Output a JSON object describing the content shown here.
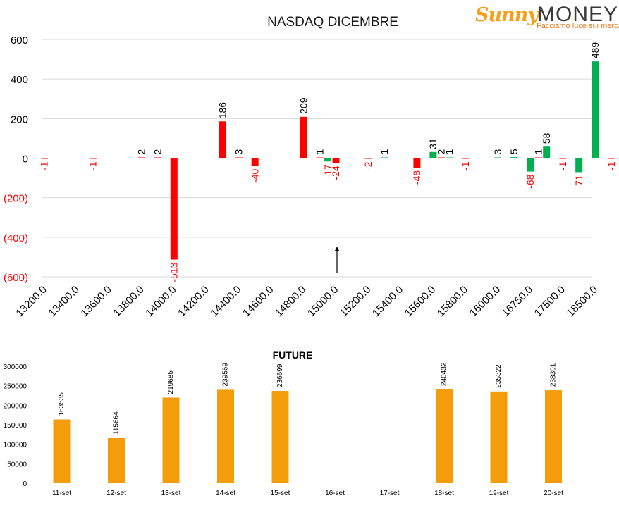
{
  "logo": {
    "brand_part1": "Sunny",
    "brand_part2": "MONEY",
    "tagline": "Facciamo luce sui mercati"
  },
  "colors": {
    "negative": "#ff0000",
    "positive": "#00b050",
    "future_bar": "#f59c0a",
    "grid": "#d9d9d9",
    "text": "#000000"
  },
  "chart_data": [
    {
      "type": "bar",
      "title": "NASDAQ DICEMBRE",
      "categories": [
        "13200.0",
        "13400.0",
        "13600.0",
        "13800.0",
        "14000.0",
        "14200.0",
        "14400.0",
        "14600.0",
        "14800.0",
        "15000.0",
        "15200.0",
        "15400.0",
        "15600.0",
        "15800.0",
        "16000.0",
        "16750.0",
        "17500.0",
        "18500.0"
      ],
      "y_ticks": [
        "600",
        "400",
        "200",
        "0",
        "(200)",
        "(400)",
        "(600)"
      ],
      "ylim": [
        -600,
        600
      ],
      "grid": true,
      "annotation": "arrow pointing up at 15000.0",
      "bars": [
        {
          "pos": 0.0,
          "value": -1,
          "label": "-1",
          "color": "negative"
        },
        {
          "pos": 1.5,
          "value": -1,
          "label": "-1",
          "color": "negative"
        },
        {
          "pos": 3.0,
          "value": 2,
          "label": "2",
          "color": "negative"
        },
        {
          "pos": 3.5,
          "value": 2,
          "label": "2",
          "color": "negative"
        },
        {
          "pos": 4.0,
          "value": -513,
          "label": "-513",
          "color": "negative"
        },
        {
          "pos": 5.5,
          "value": 186,
          "label": "186",
          "color": "negative"
        },
        {
          "pos": 6.0,
          "value": 3,
          "label": "3",
          "color": "negative"
        },
        {
          "pos": 6.5,
          "value": -40,
          "label": "-40",
          "color": "negative"
        },
        {
          "pos": 8.0,
          "value": 209,
          "label": "209",
          "color": "negative"
        },
        {
          "pos": 8.5,
          "value": 1,
          "label": "1",
          "color": "negative"
        },
        {
          "pos": 8.75,
          "value": -17,
          "label": "-17",
          "color": "positive"
        },
        {
          "pos": 9.0,
          "value": -24,
          "label": "-24",
          "color": "negative"
        },
        {
          "pos": 10.0,
          "value": -2,
          "label": "-2",
          "color": "negative"
        },
        {
          "pos": 10.5,
          "value": 1,
          "label": "1",
          "color": "positive"
        },
        {
          "pos": 11.5,
          "value": -48,
          "label": "-48",
          "color": "negative"
        },
        {
          "pos": 12.0,
          "value": 31,
          "label": "31",
          "color": "positive"
        },
        {
          "pos": 12.25,
          "value": 2,
          "label": "2",
          "color": "negative"
        },
        {
          "pos": 12.5,
          "value": 1,
          "label": "1",
          "color": "positive"
        },
        {
          "pos": 13.0,
          "value": -1,
          "label": "-1",
          "color": "negative"
        },
        {
          "pos": 14.0,
          "value": 3,
          "label": "3",
          "color": "positive"
        },
        {
          "pos": 14.5,
          "value": 5,
          "label": "5",
          "color": "positive"
        },
        {
          "pos": 15.0,
          "value": -68,
          "label": "-68",
          "color": "positive"
        },
        {
          "pos": 15.25,
          "value": 1,
          "label": "1",
          "color": "negative"
        },
        {
          "pos": 15.5,
          "value": 58,
          "label": "58",
          "color": "positive"
        },
        {
          "pos": 16.0,
          "value": -1,
          "label": "-1",
          "color": "negative"
        },
        {
          "pos": 16.5,
          "value": -71,
          "label": "-71",
          "color": "positive"
        },
        {
          "pos": 17.0,
          "value": 489,
          "label": "489",
          "color": "positive"
        },
        {
          "pos": 17.5,
          "value": -1,
          "label": "-1",
          "color": "negative"
        }
      ]
    },
    {
      "type": "bar",
      "title": "FUTURE",
      "categories": [
        "11-set",
        "12-set",
        "13-set",
        "14-set",
        "15-set",
        "16-set",
        "17-set",
        "18-set",
        "19-set",
        "20-set"
      ],
      "values": [
        163535,
        115664,
        219685,
        239569,
        236699,
        null,
        null,
        240432,
        235322,
        238391
      ],
      "labels": [
        "163535",
        "115664",
        "219685",
        "239569",
        "236699",
        "",
        "",
        "240432",
        "235322",
        "238391"
      ],
      "y_ticks": [
        "300000",
        "250000",
        "200000",
        "150000",
        "100000",
        "50000",
        "0"
      ],
      "ylim": [
        0,
        300000
      ],
      "grid": false
    }
  ]
}
